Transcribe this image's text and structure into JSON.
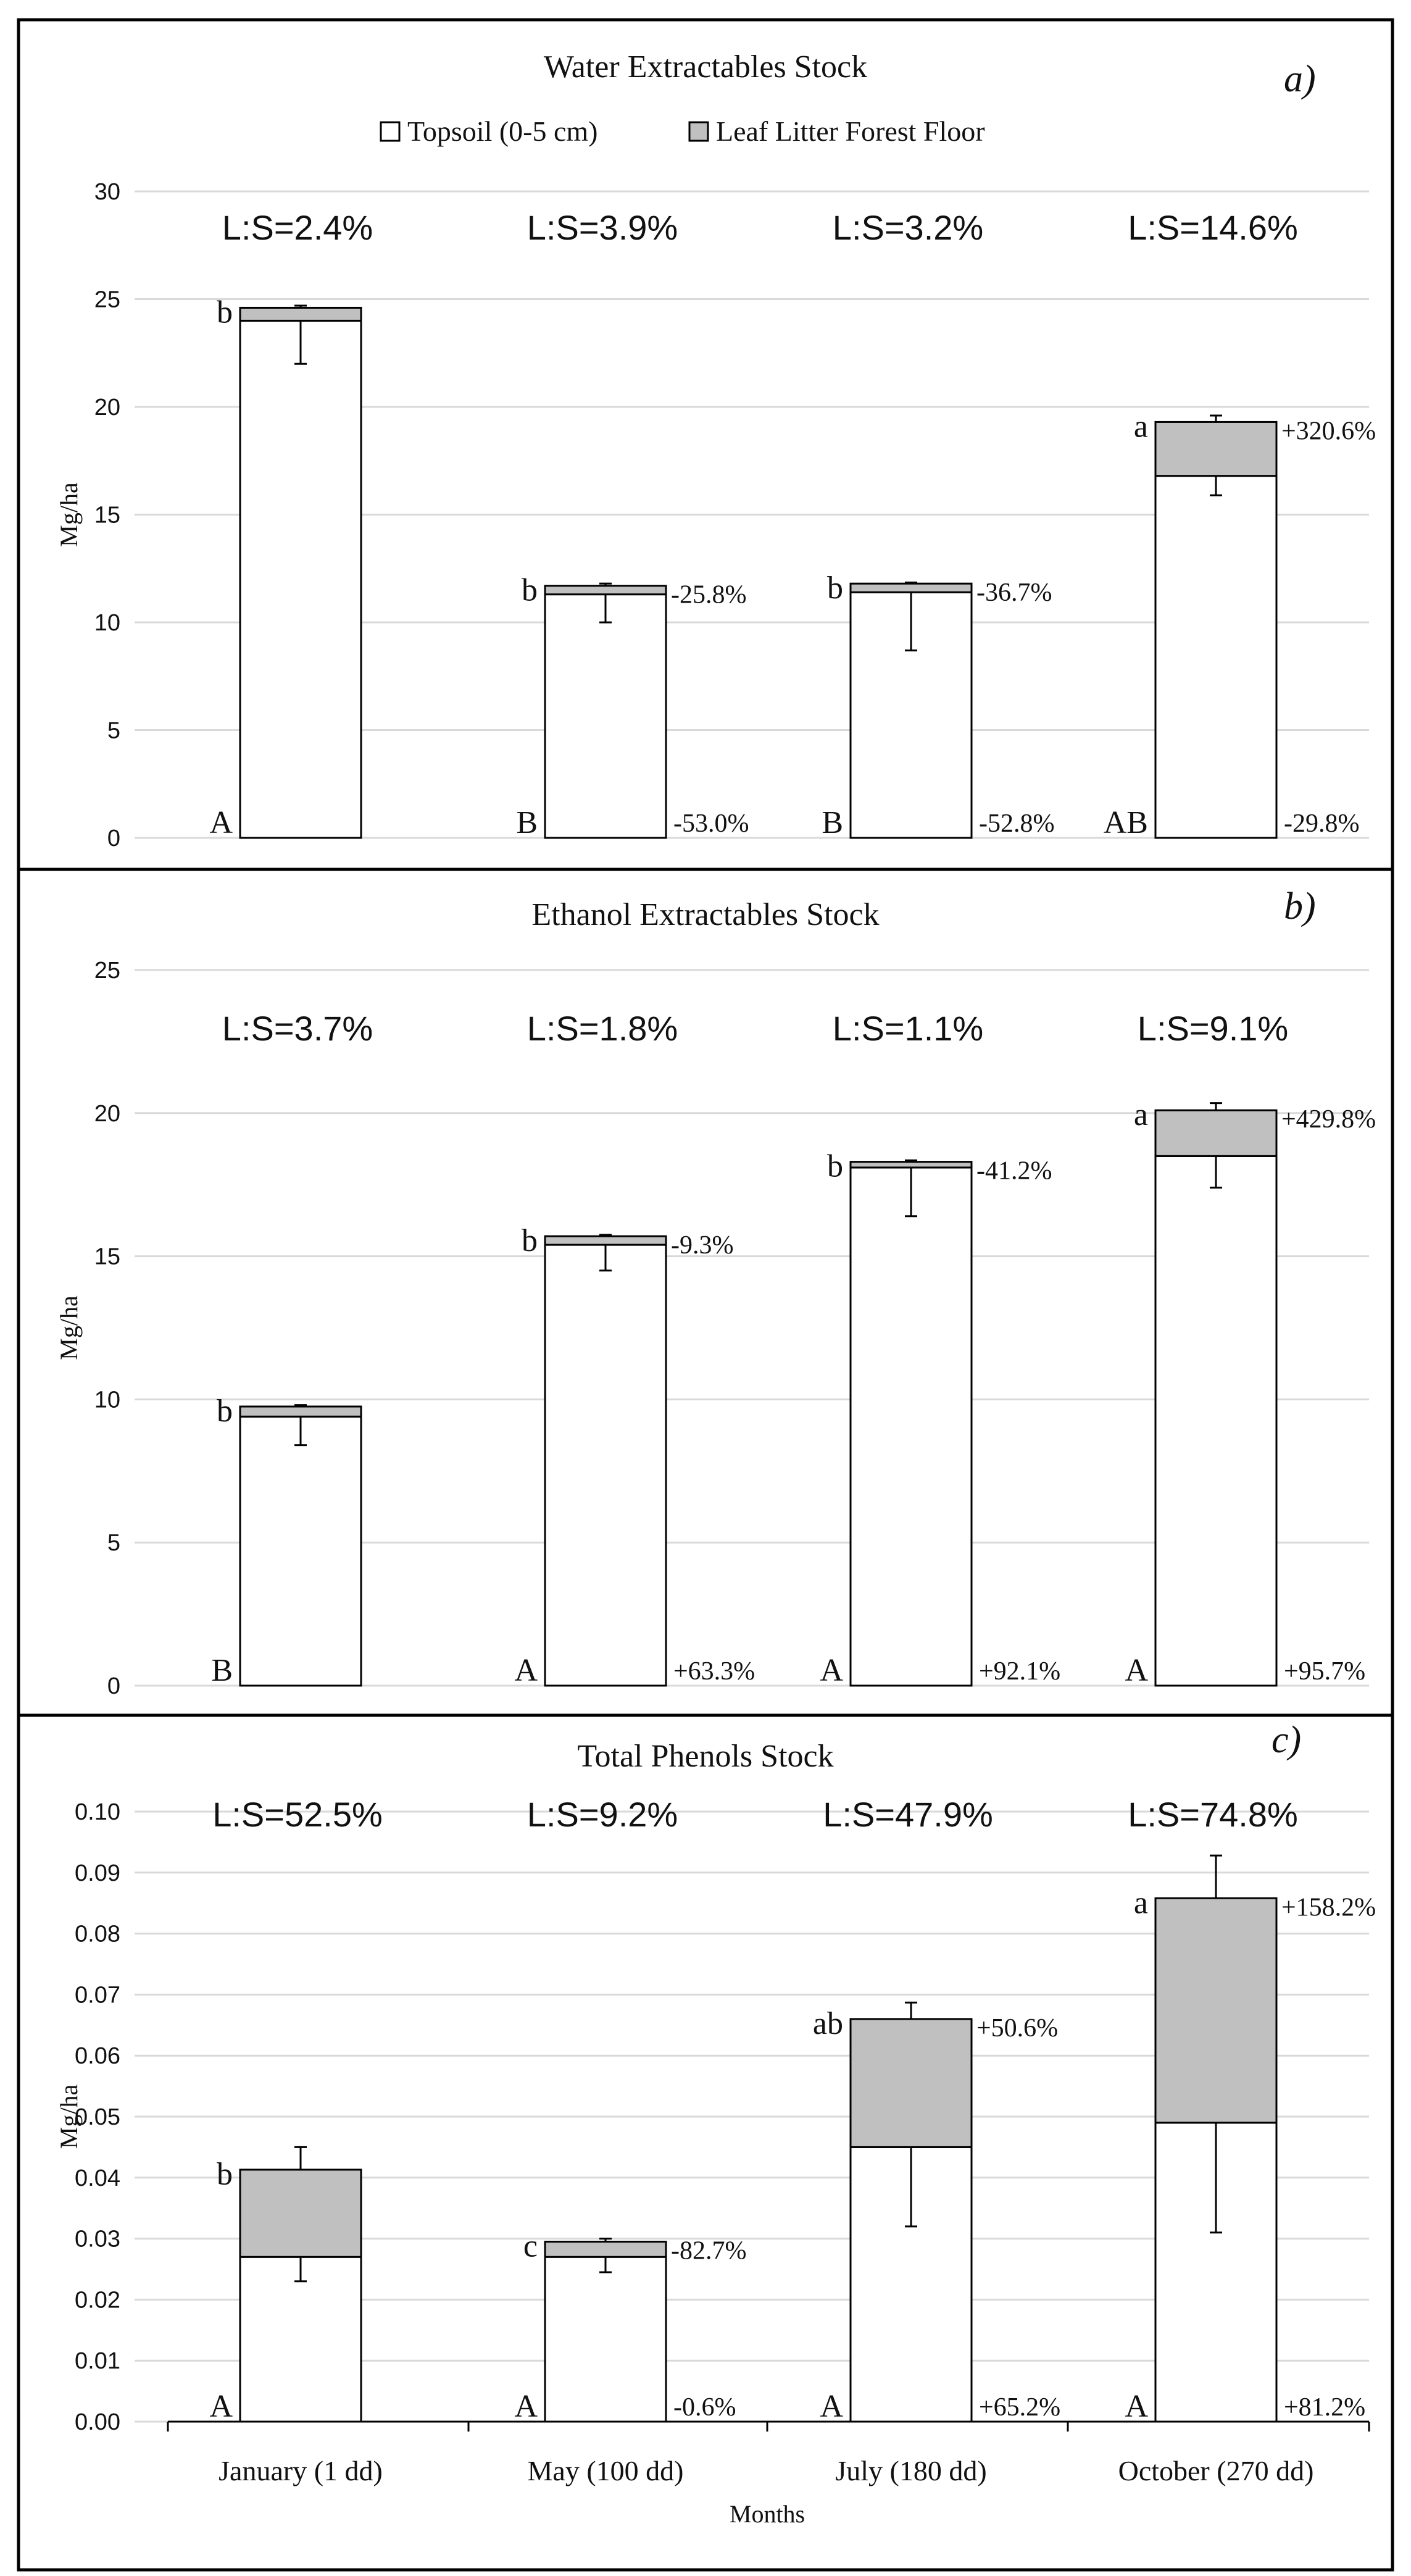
{
  "legend": {
    "topsoil": "Topsoil (0-5 cm)",
    "litter": "Leaf Litter Forest Floor"
  },
  "colors": {
    "topsoil": "#ffffff",
    "litter": "#c0c0c0",
    "outline": "#000000",
    "grid": "#d9d9d9"
  },
  "xaxis": {
    "title": "Months",
    "categories": [
      "January (1 dd)",
      "May (100 dd)",
      "July (180 dd)",
      "October (270 dd)"
    ]
  },
  "chart_data": [
    {
      "type": "bar",
      "stacked": true,
      "title": "Water Extractables Stock",
      "panel_tag": "a)",
      "ylabel": "Mg/ha",
      "ylim": [
        0,
        30
      ],
      "yticks": [
        "0",
        "5",
        "10",
        "15",
        "20",
        "25",
        "30"
      ],
      "categories": [
        "January (1 dd)",
        "May (100 dd)",
        "July (180 dd)",
        "October (270 dd)"
      ],
      "series": [
        {
          "name": "Topsoil (0-5 cm)",
          "values": [
            24.0,
            11.3,
            11.4,
            16.8
          ],
          "error_low": [
            2.0,
            1.3,
            2.7,
            0.9
          ]
        },
        {
          "name": "Leaf Litter Forest Floor",
          "values": [
            0.6,
            0.4,
            0.4,
            2.5
          ],
          "error_high": [
            0.1,
            0.1,
            0.05,
            0.3
          ]
        }
      ],
      "ls_ratios": [
        "L:S=2.4%",
        "L:S=3.9%",
        "L:S=3.2%",
        "L:S=14.6%"
      ],
      "litter_letters": [
        "b",
        "b",
        "b",
        "a"
      ],
      "litter_pct": [
        "",
        "-25.8%",
        "-36.7%",
        "+320.6%"
      ],
      "soil_letters": [
        "A",
        "B",
        "B",
        "AB"
      ],
      "soil_pct": [
        "",
        "-53.0%",
        "-52.8%",
        "-29.8%"
      ]
    },
    {
      "type": "bar",
      "stacked": true,
      "title": "Ethanol Extractables Stock",
      "panel_tag": "b)",
      "ylabel": "Mg/ha",
      "ylim": [
        0,
        25
      ],
      "yticks": [
        "0",
        "5",
        "10",
        "15",
        "20",
        "25"
      ],
      "categories": [
        "January (1 dd)",
        "May (100 dd)",
        "July (180 dd)",
        "October (270 dd)"
      ],
      "series": [
        {
          "name": "Topsoil (0-5 cm)",
          "values": [
            9.4,
            15.4,
            18.1,
            18.5
          ],
          "error_low": [
            1.0,
            0.9,
            1.7,
            1.1
          ]
        },
        {
          "name": "Leaf Litter Forest Floor",
          "values": [
            0.35,
            0.3,
            0.2,
            1.6
          ],
          "error_high": [
            0.05,
            0.05,
            0.05,
            0.25
          ]
        }
      ],
      "ls_ratios": [
        "L:S=3.7%",
        "L:S=1.8%",
        "L:S=1.1%",
        "L:S=9.1%"
      ],
      "litter_letters": [
        "b",
        "b",
        "b",
        "a"
      ],
      "litter_pct": [
        "",
        "-9.3%",
        "-41.2%",
        "+429.8%"
      ],
      "soil_letters": [
        "B",
        "A",
        "A",
        "A"
      ],
      "soil_pct": [
        "",
        "+63.3%",
        "+92.1%",
        "+95.7%"
      ]
    },
    {
      "type": "bar",
      "stacked": true,
      "title": "Total Phenols Stock",
      "panel_tag": "c)",
      "ylabel": "Mg/ha",
      "ylim": [
        0,
        0.1
      ],
      "yticks": [
        "0.00",
        "0.01",
        "0.02",
        "0.03",
        "0.04",
        "0.05",
        "0.06",
        "0.07",
        "0.08",
        "0.09",
        "0.10"
      ],
      "categories": [
        "January (1 dd)",
        "May (100 dd)",
        "July (180 dd)",
        "October (270 dd)"
      ],
      "series": [
        {
          "name": "Topsoil (0-5 cm)",
          "values": [
            0.027,
            0.027,
            0.045,
            0.049
          ],
          "error_low": [
            0.004,
            0.0025,
            0.013,
            0.018
          ]
        },
        {
          "name": "Leaf Litter Forest Floor",
          "values": [
            0.0143,
            0.0025,
            0.021,
            0.0368
          ],
          "error_high": [
            0.0037,
            0.0005,
            0.0027,
            0.007
          ]
        }
      ],
      "ls_ratios": [
        "L:S=52.5%",
        "L:S=9.2%",
        "L:S=47.9%",
        "L:S=74.8%"
      ],
      "litter_letters": [
        "b",
        "c",
        "ab",
        "a"
      ],
      "litter_pct": [
        "",
        "-82.7%",
        "+50.6%",
        "+158.2%"
      ],
      "soil_letters": [
        "A",
        "A",
        "A",
        "A"
      ],
      "soil_pct": [
        "",
        "-0.6%",
        "+65.2%",
        "+81.2%"
      ]
    }
  ]
}
